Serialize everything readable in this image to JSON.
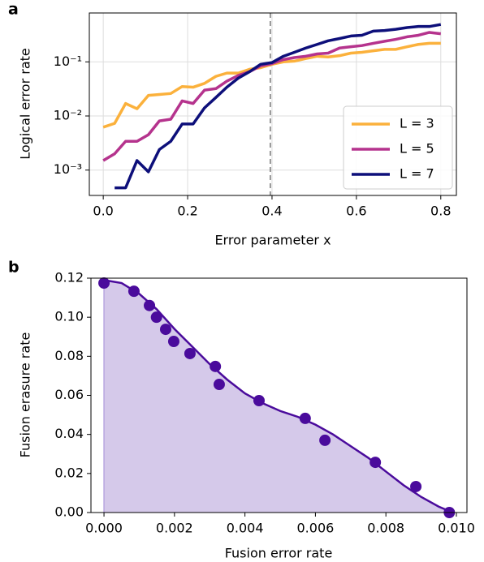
{
  "chart_data": [
    {
      "type": "line",
      "panel_label": "a",
      "xlabel": "Error parameter x",
      "ylabel": "Logical error rate",
      "x": [
        0.0,
        0.027,
        0.053,
        0.08,
        0.107,
        0.133,
        0.16,
        0.187,
        0.213,
        0.24,
        0.267,
        0.293,
        0.32,
        0.347,
        0.373,
        0.4,
        0.427,
        0.453,
        0.48,
        0.507,
        0.533,
        0.56,
        0.587,
        0.613,
        0.64,
        0.667,
        0.693,
        0.72,
        0.747,
        0.773,
        0.8
      ],
      "series": [
        {
          "name": "L = 3",
          "color": "#fbb13c",
          "values": [
            0.0062,
            0.0073,
            0.017,
            0.0136,
            0.024,
            0.025,
            0.026,
            0.035,
            0.034,
            0.04,
            0.054,
            0.062,
            0.062,
            0.073,
            0.078,
            0.09,
            0.1,
            0.103,
            0.115,
            0.127,
            0.123,
            0.13,
            0.145,
            0.15,
            0.16,
            0.17,
            0.17,
            0.19,
            0.21,
            0.22,
            0.22
          ]
        },
        {
          "name": "L = 5",
          "color": "#b5338d",
          "values": [
            0.0015,
            0.002,
            0.0034,
            0.0034,
            0.0045,
            0.0081,
            0.0087,
            0.019,
            0.017,
            0.03,
            0.032,
            0.044,
            0.056,
            0.066,
            0.084,
            0.093,
            0.11,
            0.12,
            0.127,
            0.14,
            0.145,
            0.18,
            0.19,
            0.2,
            0.22,
            0.24,
            0.26,
            0.29,
            0.31,
            0.35,
            0.33
          ]
        },
        {
          "name": "L = 7",
          "color": "#0d0f7a",
          "values": [
            null,
            0.00047,
            0.00047,
            0.0015,
            0.00093,
            0.0024,
            0.0034,
            0.0071,
            0.0071,
            0.0141,
            0.022,
            0.034,
            0.05,
            0.066,
            0.09,
            0.097,
            0.127,
            0.15,
            0.18,
            0.21,
            0.245,
            0.27,
            0.3,
            0.31,
            0.37,
            0.38,
            0.4,
            0.43,
            0.45,
            0.45,
            0.49
          ]
        }
      ],
      "xlim": [
        -0.033,
        0.837
      ],
      "xticks": [
        {
          "value": 0,
          "label": "0.0"
        },
        0.2,
        0.4,
        0.6,
        0.8
      ],
      "ylim": [
        0.00034,
        0.8
      ],
      "log_y": true,
      "yticks": [
        {
          "value": 0.001,
          "label": "10⁻³"
        },
        {
          "value": 0.01,
          "label": "10⁻²"
        },
        {
          "value": 0.1,
          "label": "10⁻¹"
        }
      ],
      "grid": true,
      "vline": 0.396,
      "legend": "lower right"
    },
    {
      "type": "scatter",
      "panel_label": "b",
      "xlabel": "Fusion error rate",
      "ylabel": "Fusion erasure rate",
      "x": [
        0,
        0.00085,
        0.00129,
        0.00149,
        0.00175,
        0.00198,
        0.00244,
        0.00316,
        0.00327,
        0.0044,
        0.00571,
        0.00627,
        0.0077,
        0.00885,
        0.0098
      ],
      "values": [
        0.1175,
        0.1133,
        0.106,
        0.1,
        0.0938,
        0.0876,
        0.0814,
        0.0748,
        0.0656,
        0.0573,
        0.0482,
        0.037,
        0.0257,
        0.0133,
        0
      ],
      "color": "#4a0b9c",
      "curve": {
        "x": [
          0,
          0.0005,
          0.001,
          0.0015,
          0.002,
          0.0025,
          0.003,
          0.0035,
          0.004,
          0.0045,
          0.005,
          0.0055,
          0.006,
          0.0065,
          0.007,
          0.0075,
          0.008,
          0.0085,
          0.009,
          0.0095,
          0.0099
        ],
        "values": [
          0.119,
          0.1175,
          0.112,
          0.104,
          0.094,
          0.085,
          0.076,
          0.068,
          0.061,
          0.056,
          0.052,
          0.049,
          0.045,
          0.04,
          0.034,
          0.028,
          0.021,
          0.014,
          0.008,
          0.003,
          0
        ],
        "color": "#4a0b9c",
        "fill": "#d5c9ea"
      },
      "xlim": [
        -0.00037,
        0.0103
      ],
      "xticks": [
        {
          "value": 0,
          "label": "0.000"
        },
        0.002,
        0.004,
        0.006,
        0.008,
        {
          "value": 0.01,
          "label": "0.010"
        }
      ],
      "ylim": [
        0,
        0.12
      ],
      "yticks": [
        {
          "value": 0,
          "label": "0.00"
        },
        0.02,
        0.04,
        0.06,
        0.08,
        {
          "value": 0.1,
          "label": "0.10"
        },
        {
          "value": 0.12,
          "label": "0.12"
        }
      ],
      "grid": false
    }
  ]
}
